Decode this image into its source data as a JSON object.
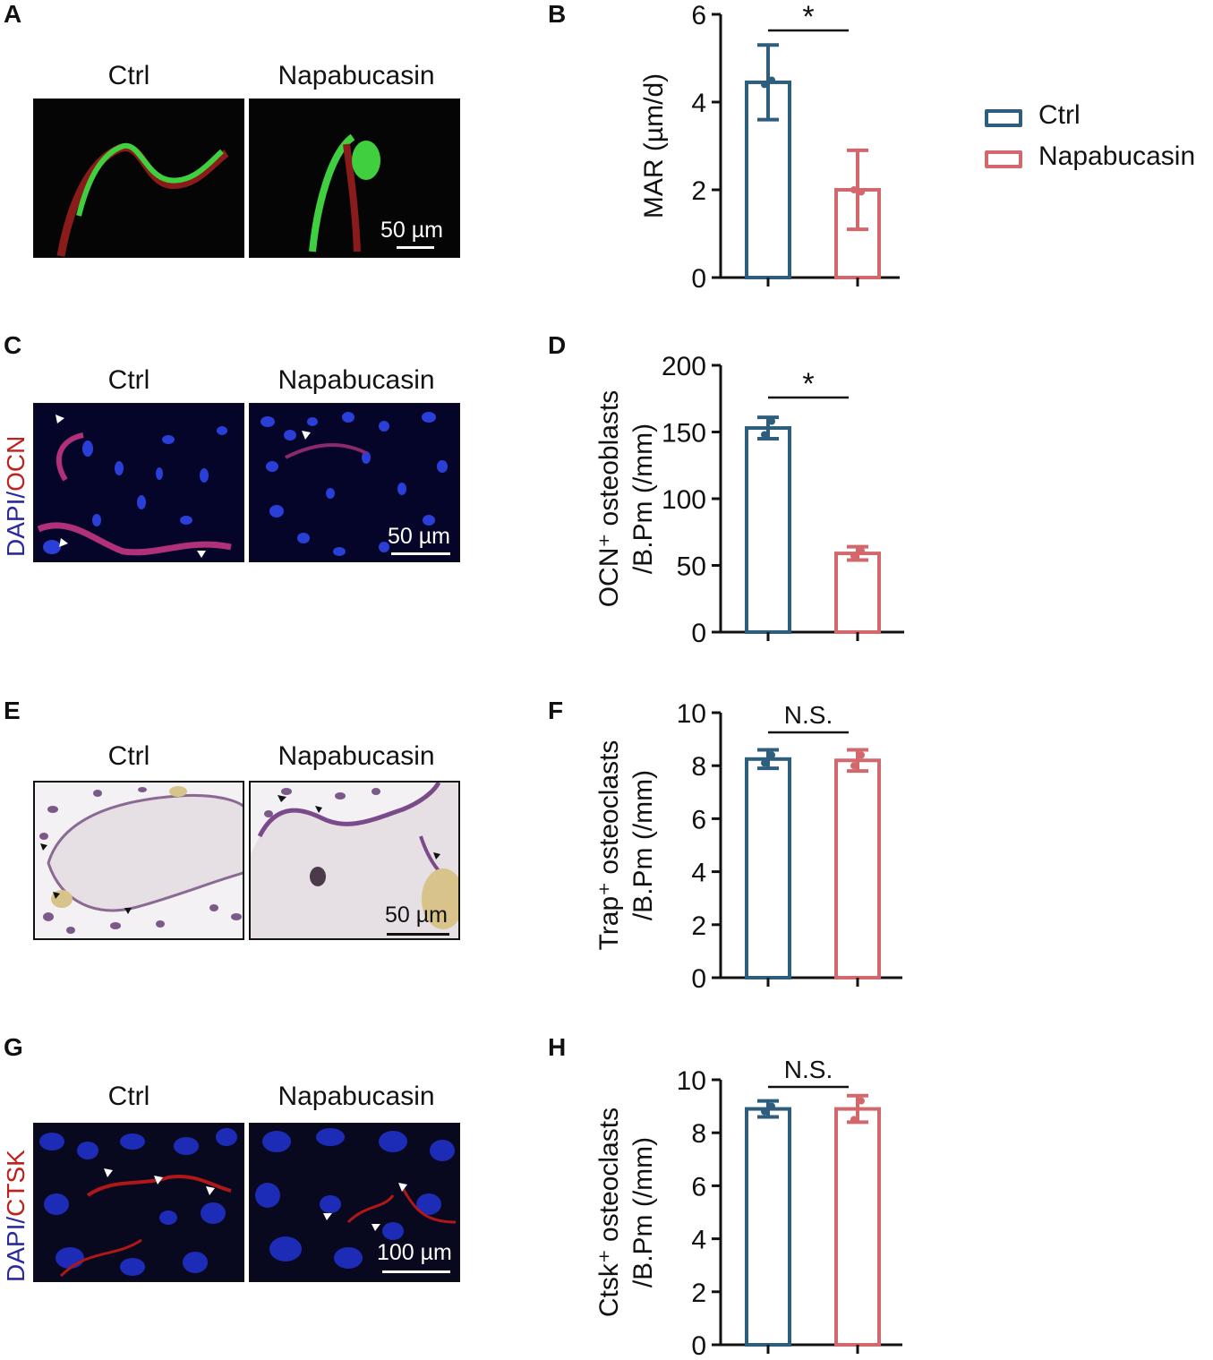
{
  "panels": {
    "A": {
      "label": "A",
      "left_title": "Ctrl",
      "right_title": "Napabucasin",
      "scale": "50 µm"
    },
    "B": {
      "label": "B"
    },
    "C": {
      "label": "C",
      "left_title": "Ctrl",
      "right_title": "Napabucasin",
      "scale": "50 µm",
      "stain_a": "DAPI",
      "stain_sep": "/",
      "stain_b": "OCN"
    },
    "D": {
      "label": "D"
    },
    "E": {
      "label": "E",
      "left_title": "Ctrl",
      "right_title": "Napabucasin",
      "scale": "50 µm"
    },
    "F": {
      "label": "F"
    },
    "G": {
      "label": "G",
      "left_title": "Ctrl",
      "right_title": "Napabucasin",
      "scale": "100 µm",
      "stain_a": "DAPI",
      "stain_sep": "/",
      "stain_b": "CTSK"
    },
    "H": {
      "label": "H"
    }
  },
  "legend": [
    {
      "name": "Ctrl",
      "color": "#2e5e7e"
    },
    {
      "name": "Napabucasin",
      "color": "#d2686c"
    }
  ],
  "chart_data": [
    {
      "id": "B",
      "type": "bar",
      "categories": [
        "Ctrl",
        "Napabucasin"
      ],
      "values": [
        4.45,
        2.0
      ],
      "errors": [
        0.85,
        0.9
      ],
      "points": [
        [
          4.4,
          4.5
        ],
        [
          2.0,
          1.95
        ]
      ],
      "ylim": [
        0,
        6
      ],
      "yticks": [
        0,
        2,
        4,
        6
      ],
      "ylabel_lines": [
        "MAR (µm/d)"
      ],
      "significance": "*",
      "colors": [
        "#2e5e7e",
        "#d2686c"
      ]
    },
    {
      "id": "D",
      "type": "bar",
      "categories": [
        "Ctrl",
        "Napabucasin"
      ],
      "values": [
        153,
        59
      ],
      "errors": [
        8,
        5
      ],
      "points": [
        [
          148,
          158
        ],
        [
          57,
          61
        ]
      ],
      "ylim": [
        0,
        200
      ],
      "yticks": [
        0,
        50,
        100,
        150,
        200
      ],
      "ylabel_lines": [
        "OCN⁺ osteoblasts",
        "/B.Pm (/mm)"
      ],
      "significance": "*",
      "colors": [
        "#2e5e7e",
        "#d2686c"
      ]
    },
    {
      "id": "F",
      "type": "bar",
      "categories": [
        "Ctrl",
        "Napabucasin"
      ],
      "values": [
        8.25,
        8.2
      ],
      "errors": [
        0.35,
        0.4
      ],
      "points": [
        [
          8.1,
          8.4
        ],
        [
          8.0,
          8.4
        ]
      ],
      "ylim": [
        0,
        10
      ],
      "yticks": [
        0,
        2,
        4,
        6,
        8,
        10
      ],
      "ylabel_lines": [
        "Trap⁺ osteoclasts",
        "/B.Pm (/mm)"
      ],
      "significance": "N.S.",
      "colors": [
        "#2e5e7e",
        "#d2686c"
      ]
    },
    {
      "id": "H",
      "type": "bar",
      "categories": [
        "Ctrl",
        "Napabucasin"
      ],
      "values": [
        8.9,
        8.9
      ],
      "errors": [
        0.3,
        0.5
      ],
      "points": [
        [
          8.8,
          9.0
        ],
        [
          8.5,
          9.2
        ]
      ],
      "ylim": [
        0,
        10
      ],
      "yticks": [
        0,
        2,
        4,
        6,
        8,
        10
      ],
      "ylabel_lines": [
        "Ctsk⁺ osteoclasts",
        "/B.Pm (/mm)"
      ],
      "significance": "N.S.",
      "colors": [
        "#2e5e7e",
        "#d2686c"
      ]
    }
  ]
}
